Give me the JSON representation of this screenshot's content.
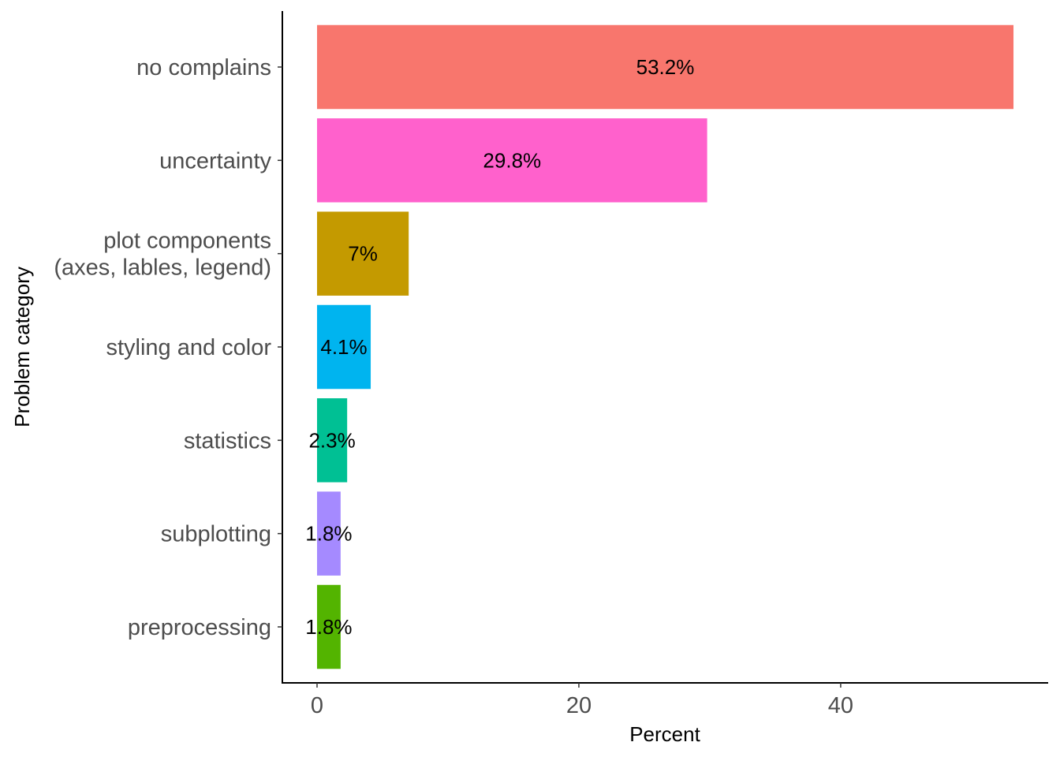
{
  "chart_data": {
    "type": "bar",
    "orientation": "horizontal",
    "xlabel": "Percent",
    "ylabel": "Problem category",
    "xlim": [
      -2.65,
      55.85
    ],
    "x_ticks": [
      0,
      20,
      40
    ],
    "grid": false,
    "legend": "none",
    "categories": [
      [
        "no complains"
      ],
      [
        "uncertainty"
      ],
      [
        "plot components",
        "(axes, lables, legend)"
      ],
      [
        "styling and color"
      ],
      [
        "statistics"
      ],
      [
        "subplotting"
      ],
      [
        "preprocessing"
      ]
    ],
    "values": [
      53.2,
      29.8,
      7,
      4.1,
      2.3,
      1.8,
      1.8
    ],
    "labels": [
      "53.2%",
      "29.8%",
      "7%",
      "4.1%",
      "2.3%",
      "1.8%",
      "1.8%"
    ],
    "colors": [
      "#F8766D",
      "#FF61CC",
      "#C49A00",
      "#00B4EF",
      "#00C094",
      "#A58AFF",
      "#53B400"
    ]
  }
}
